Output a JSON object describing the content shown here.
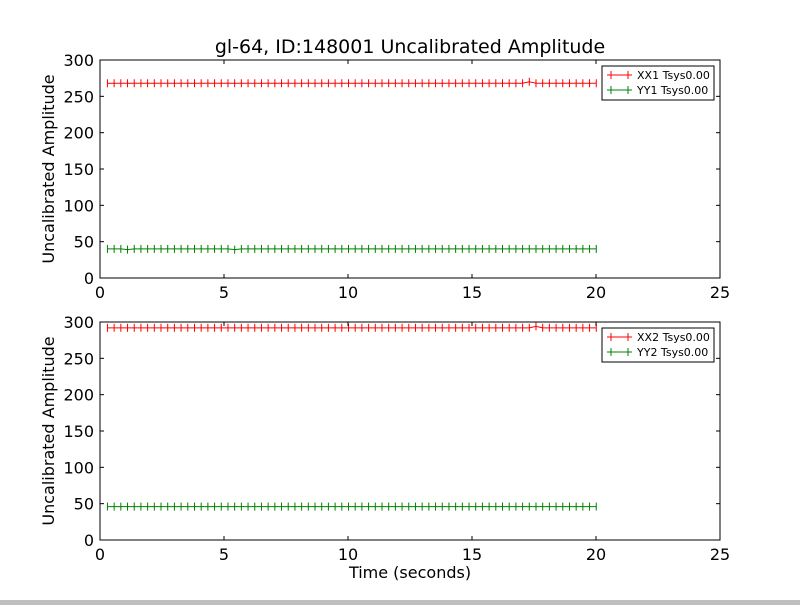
{
  "chart_data": [
    {
      "type": "line",
      "title": "gl-64, ID:148001 Uncalibrated Amplitude",
      "xlabel": "",
      "ylabel": "Uncalibrated Amplitude",
      "xlim": [
        0,
        25
      ],
      "ylim": [
        0,
        300
      ],
      "xticks": [
        "0",
        "5",
        "10",
        "15",
        "20",
        "25"
      ],
      "yticks": [
        "0",
        "50",
        "100",
        "150",
        "200",
        "250",
        "300"
      ],
      "grid": false,
      "legend": "top-right",
      "sampling": {
        "x_start": 0.3,
        "x_step": 0.27,
        "count": 74
      },
      "series": [
        {
          "name": "XX1 Tsys0.00",
          "color": "#ff0000",
          "value": 268,
          "bumps": [
            {
              "x": 17.3,
              "y": 270
            }
          ]
        },
        {
          "name": "YY1 Tsys0.00",
          "color": "#008000",
          "value": 40,
          "bumps": [
            {
              "x": 1.0,
              "y": 39
            },
            {
              "x": 5.5,
              "y": 39
            }
          ]
        }
      ]
    },
    {
      "type": "line",
      "title": "",
      "xlabel": "Time (seconds)",
      "ylabel": "Uncalibrated Amplitude",
      "xlim": [
        0,
        25
      ],
      "ylim": [
        0,
        300
      ],
      "xticks": [
        "0",
        "5",
        "10",
        "15",
        "20",
        "25"
      ],
      "yticks": [
        "0",
        "50",
        "100",
        "150",
        "200",
        "250",
        "300"
      ],
      "grid": false,
      "legend": "top-right",
      "sampling": {
        "x_start": 0.3,
        "x_step": 0.27,
        "count": 74
      },
      "series": [
        {
          "name": "XX2 Tsys0.00",
          "color": "#ff0000",
          "value": 292,
          "bumps": [
            {
              "x": 17.5,
              "y": 294
            }
          ]
        },
        {
          "name": "YY2 Tsys0.00",
          "color": "#008000",
          "value": 46,
          "bumps": []
        }
      ]
    }
  ]
}
